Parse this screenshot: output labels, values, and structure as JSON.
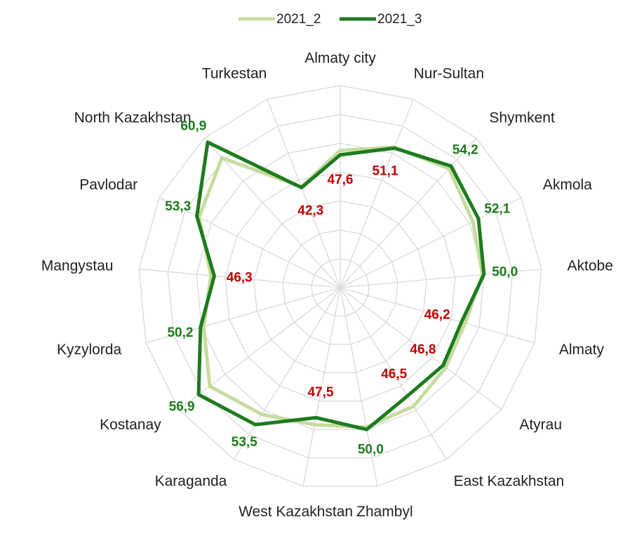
{
  "chart_data": {
    "type": "radar",
    "categories": [
      "Almaty city",
      "Nur-Sultan",
      "Shymkent",
      "Akmola",
      "Aktobe",
      "Almaty",
      "Atyrau",
      "East Kazakhstan",
      "Zhambyl",
      "West Kazakhstan",
      "Karaganda",
      "Kostanay",
      "Kyzylorda",
      "Mangystau",
      "Pavlodar",
      "North Kazakhstan",
      "Turkestan"
    ],
    "series": [
      {
        "name": "2021_2",
        "color": "#c5dc9e",
        "values": [
          48.5,
          51.3,
          53.5,
          50.8,
          49.7,
          47.0,
          47.5,
          49.0,
          49.5,
          49.0,
          51.0,
          54.0,
          49.5,
          47.0,
          52.8,
          56.5,
          42.5
        ]
      },
      {
        "name": "2021_3",
        "color": "#1e7b1e",
        "values": [
          47.6,
          51.1,
          54.2,
          52.1,
          50.0,
          46.2,
          46.8,
          46.5,
          50.0,
          47.5,
          53.5,
          56.9,
          50.2,
          46.3,
          53.3,
          60.9,
          42.3
        ],
        "value_labels": [
          "47,6",
          "51,1",
          "54,2",
          "52,1",
          "50,0",
          "46,2",
          "46,8",
          "46,5",
          "50,0",
          "47,5",
          "53,5",
          "56,9",
          "50,2",
          "46,3",
          "53,3",
          "60,9",
          "42,3"
        ]
      }
    ],
    "ylim": [
      20,
      62
    ],
    "yticks": [
      20,
      26,
      32,
      38,
      44,
      50,
      56,
      62
    ],
    "grid": true,
    "legend": "top"
  }
}
